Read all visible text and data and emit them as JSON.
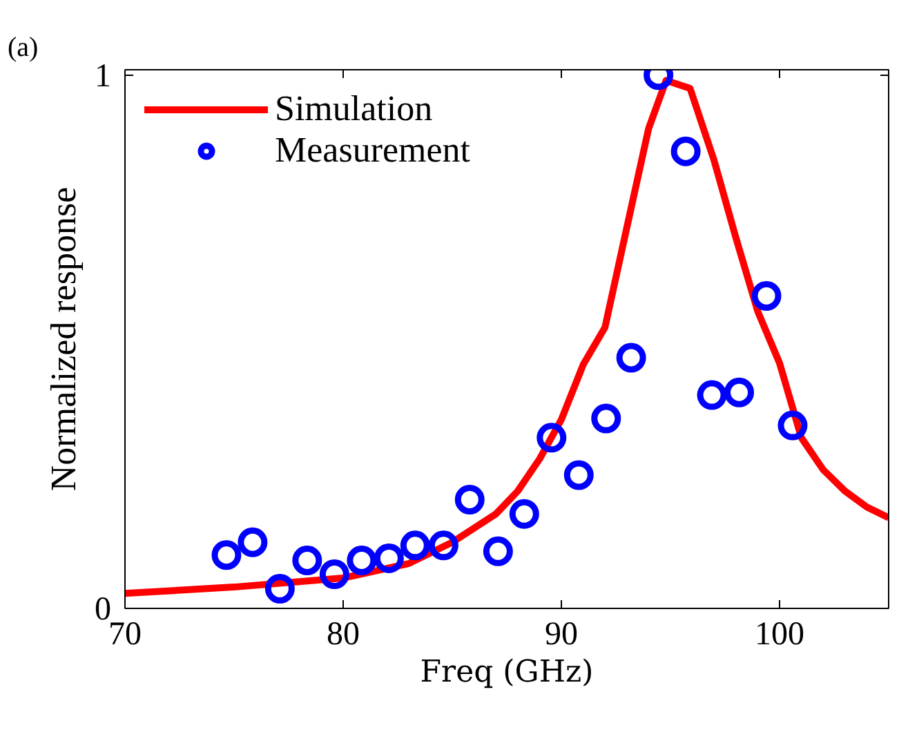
{
  "chart_data": {
    "type": "line",
    "title": "(a)",
    "xlabel": "Freq (GHz)",
    "ylabel": "Normalized response",
    "xlim": [
      70,
      105
    ],
    "xticks": [
      70,
      80,
      90,
      100
    ],
    "ylim": [
      0,
      1.01
    ],
    "yticks": [
      0,
      1
    ],
    "grid": false,
    "legend": "top left",
    "series": [
      {
        "name": "Simulation",
        "color": "#ff0000",
        "x": [
          70,
          75,
          80,
          83,
          85,
          87,
          88,
          89,
          90,
          91,
          92,
          93,
          94,
          94.8,
          95.9,
          97,
          98,
          99,
          100,
          101,
          102,
          103,
          104,
          105
        ],
        "values": [
          0.028,
          0.04,
          0.057,
          0.084,
          0.124,
          0.177,
          0.22,
          0.28,
          0.354,
          0.457,
          0.527,
          0.714,
          0.9,
          0.99,
          0.975,
          0.84,
          0.695,
          0.557,
          0.46,
          0.32,
          0.26,
          0.22,
          0.19,
          0.17
        ]
      },
      {
        "name": "Measurement",
        "type": "scatter",
        "color": "#0000ff",
        "marker": "circle",
        "x": [
          74.65,
          75.85,
          77.1,
          78.35,
          79.6,
          80.85,
          82.1,
          83.3,
          84.6,
          85.8,
          87.1,
          88.3,
          89.55,
          90.8,
          92.05,
          93.2,
          94.45,
          95.7,
          96.9,
          98.15,
          99.4,
          100.6
        ],
        "values": [
          0.1,
          0.124,
          0.037,
          0.09,
          0.064,
          0.09,
          0.094,
          0.118,
          0.118,
          0.204,
          0.107,
          0.177,
          0.32,
          0.25,
          0.356,
          0.47,
          1.0,
          0.857,
          0.4,
          0.405,
          0.586,
          0.343
        ]
      }
    ]
  }
}
